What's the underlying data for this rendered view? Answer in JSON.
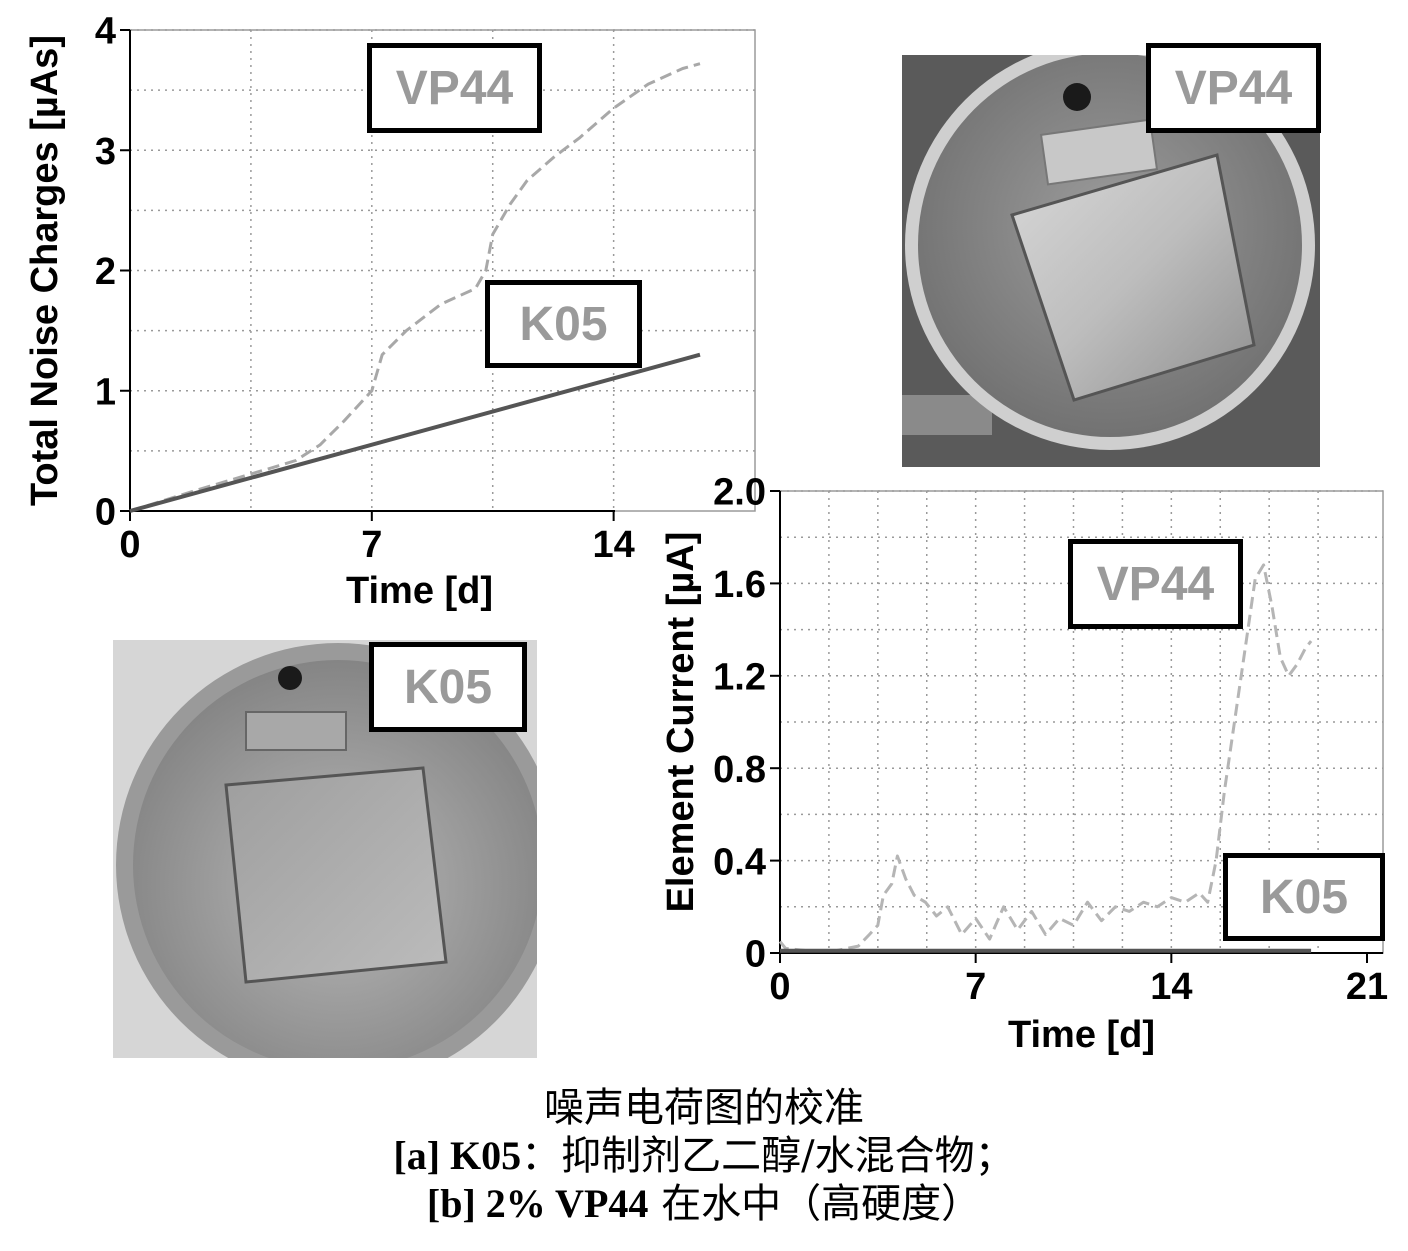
{
  "chart_data": [
    {
      "type": "line",
      "xlabel": "Time [d]",
      "ylabel": "Total Noise Charges [µAs]",
      "xlim": [
        0,
        16.5
      ],
      "ylim": [
        0,
        4
      ],
      "x_ticks": [
        "0",
        "7",
        "14"
      ],
      "y_ticks": [
        "0",
        "1",
        "2",
        "3",
        "4"
      ],
      "grid": true,
      "series": [
        {
          "name": "VP44",
          "color": "#a8a8a8",
          "dash": true,
          "x": [
            0,
            2,
            4,
            4.8,
            5.5,
            6.2,
            7.0,
            7.3,
            8.0,
            9.0,
            10.0,
            10.3,
            10.5,
            11.0,
            11.5,
            12.3,
            13.0,
            14.0,
            15.0,
            16.0,
            16.5
          ],
          "y": [
            0,
            0.18,
            0.35,
            0.42,
            0.55,
            0.75,
            1.0,
            1.3,
            1.5,
            1.72,
            1.85,
            2.0,
            2.3,
            2.55,
            2.75,
            2.95,
            3.1,
            3.35,
            3.55,
            3.68,
            3.72
          ]
        },
        {
          "name": "K05",
          "color": "#555555",
          "dash": false,
          "x": [
            0,
            16.5
          ],
          "y": [
            0,
            1.3
          ]
        }
      ]
    },
    {
      "type": "line",
      "xlabel": "Time [d]",
      "ylabel": "Element Current [µA]",
      "xlim": [
        0,
        21
      ],
      "ylim": [
        0,
        2.0
      ],
      "x_ticks": [
        "0",
        "7",
        "14",
        "21"
      ],
      "y_ticks": [
        "0",
        "0.4",
        "0.8",
        "1.2",
        "1.6",
        "2.0"
      ],
      "grid": true,
      "series": [
        {
          "name": "VP44",
          "color": "#b5b5b5",
          "dash": true,
          "x": [
            0,
            0.2,
            1,
            2,
            2.8,
            3.2,
            3.5,
            3.7,
            4.0,
            4.2,
            4.5,
            4.8,
            5.2,
            5.6,
            6.0,
            6.5,
            7.0,
            7.5,
            8.0,
            8.5,
            9.0,
            9.5,
            10.0,
            10.5,
            11.0,
            11.5,
            12.0,
            12.5,
            13.0,
            13.5,
            14.0,
            14.5,
            15.0,
            15.3,
            15.6,
            15.9,
            16.2,
            16.5,
            16.8,
            17.0,
            17.3,
            17.6,
            17.9,
            18.2,
            18.5,
            18.8,
            19.0
          ],
          "y": [
            0.05,
            0.02,
            0.01,
            0.01,
            0.03,
            0.08,
            0.12,
            0.25,
            0.3,
            0.42,
            0.32,
            0.25,
            0.22,
            0.16,
            0.2,
            0.08,
            0.15,
            0.06,
            0.2,
            0.1,
            0.18,
            0.08,
            0.15,
            0.12,
            0.22,
            0.14,
            0.2,
            0.18,
            0.22,
            0.2,
            0.24,
            0.22,
            0.26,
            0.22,
            0.4,
            0.7,
            0.95,
            1.2,
            1.45,
            1.62,
            1.68,
            1.5,
            1.28,
            1.2,
            1.25,
            1.32,
            1.35
          ]
        },
        {
          "name": "K05",
          "color": "#555555",
          "dash": false,
          "x": [
            0,
            19
          ],
          "y": [
            0.01,
            0.01
          ]
        }
      ]
    }
  ],
  "labels": {
    "chart1_vp44": "VP44",
    "chart1_k05": "K05",
    "photo1_label": "VP44",
    "photo2_label": "K05",
    "chart2_vp44": "VP44",
    "chart2_k05": "K05"
  },
  "caption": {
    "line1": "噪声电荷图的校准",
    "line2_bold": "[a] K05",
    "line2_rest": "：抑制剂乙二醇/水混合物；",
    "line3_bold": "[b] 2% VP44",
    "line3_rest": " 在水中（高硬度）"
  },
  "colors": {
    "vp44": "#a8a8a8",
    "k05": "#555555",
    "grid": "#9a9a9a",
    "box_border": "#000000"
  }
}
